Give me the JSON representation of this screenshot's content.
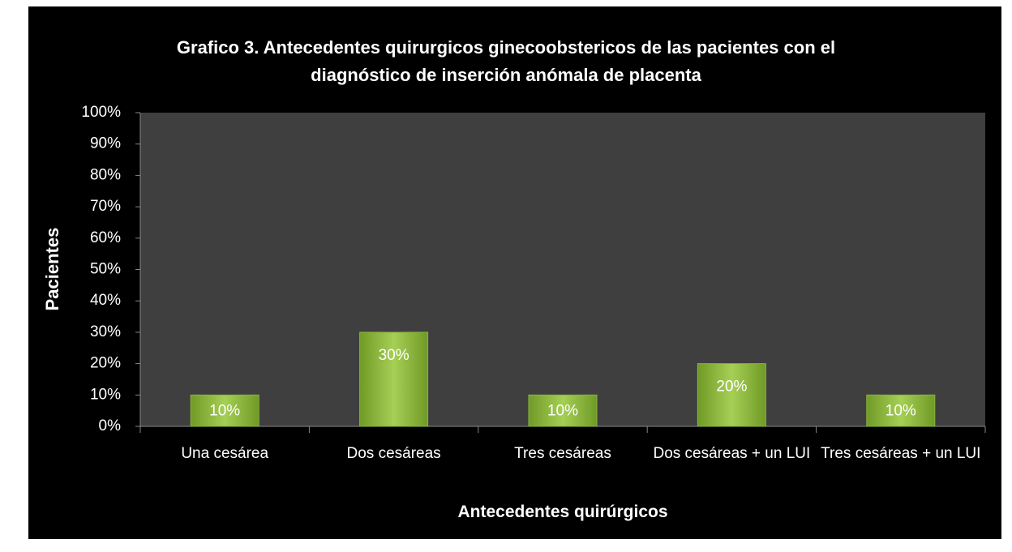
{
  "chart_data": {
    "type": "bar",
    "title": "Grafico 3. Antecedentes quirurgicos ginecoobstericos de las pacientes con el diagnóstico de inserción anómala de placenta",
    "x_label": "Antecedentes quirúrgicos",
    "y_label": "Pacientes",
    "categories": [
      "Una cesárea",
      "Dos cesáreas",
      "Tres cesáreas",
      "Dos cesáreas + un LUI",
      "Tres cesáreas + un LUI"
    ],
    "values": [
      10,
      30,
      10,
      20,
      10
    ],
    "value_labels": [
      "10%",
      "30%",
      "10%",
      "20%",
      "10%"
    ],
    "color": "#8cb43c",
    "ylim": [
      0,
      100
    ],
    "yticks": [
      {
        "value": 0,
        "label": "0%"
      },
      {
        "value": 10,
        "label": "10%"
      },
      {
        "value": 20,
        "label": "20%"
      },
      {
        "value": 30,
        "label": "30%"
      },
      {
        "value": 40,
        "label": "40%"
      },
      {
        "value": 50,
        "label": "50%"
      },
      {
        "value": 60,
        "label": "60%"
      },
      {
        "value": 70,
        "label": "70%"
      },
      {
        "value": 80,
        "label": "80%"
      },
      {
        "value": 90,
        "label": "90%"
      },
      {
        "value": 100,
        "label": "100%"
      }
    ],
    "grid": false
  }
}
